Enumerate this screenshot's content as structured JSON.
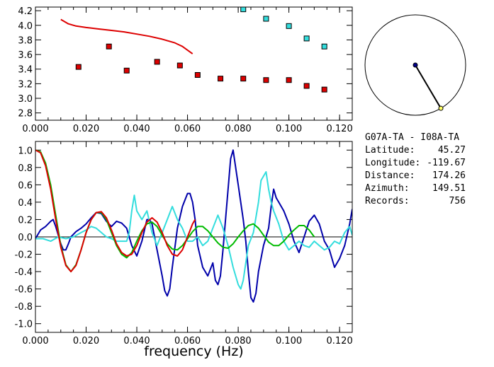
{
  "station_pair": "G07A-TA - I08A-TA",
  "info": [
    {
      "label": "Latitude:",
      "value": "45.27"
    },
    {
      "label": "Longitude:",
      "value": "-119.67"
    },
    {
      "label": "Distance:",
      "value": "174.26"
    },
    {
      "label": "Azimuth:",
      "value": "149.51"
    },
    {
      "label": "Records:",
      "value": "756"
    }
  ],
  "colors": {
    "red": "#dd0000",
    "cyan": "#33dddd",
    "blue": "#0000aa",
    "green": "#00bb00",
    "axis": "#000000"
  },
  "chart_data": [
    {
      "type": "scatter",
      "title": "",
      "xlabel": "",
      "ylabel": "",
      "xlim": [
        0.0,
        0.125
      ],
      "ylim": [
        2.7,
        4.25
      ],
      "xticks": [
        "0.000",
        "0.020",
        "0.040",
        "0.060",
        "0.080",
        "0.100",
        "0.120"
      ],
      "yticks": [
        "2.8",
        "3.0",
        "3.2",
        "3.4",
        "3.6",
        "3.8",
        "4.0",
        "4.2"
      ],
      "series": [
        {
          "kind": "line",
          "color": "red",
          "x": [
            0.01,
            0.013,
            0.016,
            0.02,
            0.025,
            0.03,
            0.035,
            0.04,
            0.045,
            0.05,
            0.055,
            0.058,
            0.06,
            0.062
          ],
          "y": [
            4.08,
            4.02,
            3.99,
            3.97,
            3.95,
            3.93,
            3.91,
            3.88,
            3.85,
            3.81,
            3.76,
            3.71,
            3.66,
            3.61
          ]
        },
        {
          "kind": "points",
          "color": "red",
          "x": [
            0.017,
            0.029,
            0.036,
            0.048,
            0.057,
            0.064,
            0.073,
            0.082,
            0.091,
            0.1,
            0.107,
            0.114
          ],
          "y": [
            3.43,
            3.71,
            3.38,
            3.5,
            3.45,
            3.32,
            3.27,
            3.27,
            3.25,
            3.25,
            3.17,
            3.12
          ]
        },
        {
          "kind": "points",
          "color": "cyan",
          "x": [
            0.082,
            0.091,
            0.1,
            0.107,
            0.114
          ],
          "y": [
            4.22,
            4.09,
            3.99,
            3.82,
            3.71
          ]
        }
      ]
    },
    {
      "type": "line",
      "title": "",
      "xlabel": "frequency (Hz)",
      "ylabel": "",
      "xlim": [
        0.0,
        0.125
      ],
      "ylim": [
        -1.1,
        1.1
      ],
      "xticks": [
        "0.000",
        "0.020",
        "0.040",
        "0.060",
        "0.080",
        "0.100",
        "0.120"
      ],
      "yticks": [
        "1.0",
        "0.8",
        "0.6",
        "0.4",
        "0.2",
        "0.0",
        "-0.2",
        "-0.4",
        "-0.6",
        "-0.8",
        "-1.0"
      ],
      "zero_line": true,
      "series": [
        {
          "color": "blue",
          "x": [
            0.0,
            0.002,
            0.004,
            0.006,
            0.007,
            0.008,
            0.009,
            0.01,
            0.011,
            0.012,
            0.013,
            0.014,
            0.016,
            0.018,
            0.02,
            0.022,
            0.024,
            0.026,
            0.028,
            0.03,
            0.032,
            0.034,
            0.036,
            0.038,
            0.04,
            0.042,
            0.044,
            0.045,
            0.046,
            0.048,
            0.05,
            0.051,
            0.052,
            0.053,
            0.054,
            0.056,
            0.058,
            0.06,
            0.061,
            0.062,
            0.063,
            0.064,
            0.066,
            0.068,
            0.07,
            0.071,
            0.072,
            0.073,
            0.074,
            0.075,
            0.076,
            0.077,
            0.078,
            0.08,
            0.082,
            0.083,
            0.084,
            0.085,
            0.086,
            0.087,
            0.088,
            0.09,
            0.092,
            0.093,
            0.094,
            0.095,
            0.096,
            0.098,
            0.1,
            0.102,
            0.104,
            0.106,
            0.108,
            0.11,
            0.112,
            0.114,
            0.116,
            0.118,
            0.12,
            0.122,
            0.124,
            0.125
          ],
          "y": [
            -0.02,
            0.08,
            0.12,
            0.18,
            0.2,
            0.12,
            0.02,
            -0.08,
            -0.15,
            -0.15,
            -0.08,
            0.0,
            0.06,
            0.1,
            0.15,
            0.22,
            0.28,
            0.27,
            0.18,
            0.12,
            0.18,
            0.16,
            0.1,
            -0.1,
            -0.22,
            -0.05,
            0.2,
            0.2,
            0.15,
            -0.15,
            -0.45,
            -0.62,
            -0.68,
            -0.6,
            -0.35,
            0.1,
            0.35,
            0.5,
            0.5,
            0.4,
            0.2,
            -0.1,
            -0.35,
            -0.45,
            -0.3,
            -0.5,
            -0.55,
            -0.45,
            -0.15,
            0.2,
            0.55,
            0.9,
            1.0,
            0.6,
            0.2,
            -0.05,
            -0.4,
            -0.7,
            -0.75,
            -0.65,
            -0.4,
            -0.1,
            0.1,
            0.35,
            0.55,
            0.45,
            0.4,
            0.3,
            0.15,
            -0.05,
            -0.18,
            0.0,
            0.18,
            0.25,
            0.15,
            -0.05,
            -0.15,
            -0.35,
            -0.25,
            -0.1,
            0.15,
            0.32
          ]
        },
        {
          "color": "cyan",
          "x": [
            0.0,
            0.003,
            0.006,
            0.009,
            0.012,
            0.015,
            0.018,
            0.02,
            0.022,
            0.024,
            0.026,
            0.028,
            0.03,
            0.032,
            0.034,
            0.036,
            0.037,
            0.038,
            0.039,
            0.04,
            0.042,
            0.044,
            0.046,
            0.048,
            0.05,
            0.052,
            0.054,
            0.056,
            0.058,
            0.06,
            0.062,
            0.064,
            0.066,
            0.068,
            0.07,
            0.072,
            0.074,
            0.076,
            0.078,
            0.08,
            0.081,
            0.082,
            0.083,
            0.084,
            0.086,
            0.088,
            0.089,
            0.09,
            0.091,
            0.092,
            0.093,
            0.094,
            0.096,
            0.098,
            0.1,
            0.102,
            0.104,
            0.106,
            0.108,
            0.11,
            0.112,
            0.114,
            0.116,
            0.118,
            0.12,
            0.122,
            0.124,
            0.125
          ],
          "y": [
            -0.02,
            -0.02,
            -0.05,
            0.0,
            -0.02,
            0.0,
            0.05,
            0.08,
            0.12,
            0.1,
            0.05,
            0.0,
            -0.02,
            -0.05,
            -0.05,
            -0.05,
            0.05,
            0.3,
            0.48,
            0.3,
            0.2,
            0.3,
            0.05,
            -0.1,
            0.05,
            0.2,
            0.35,
            0.2,
            0.1,
            -0.05,
            -0.05,
            0.0,
            -0.1,
            -0.05,
            0.1,
            0.25,
            0.1,
            -0.1,
            -0.35,
            -0.55,
            -0.6,
            -0.5,
            -0.3,
            -0.1,
            0.05,
            0.4,
            0.65,
            0.7,
            0.75,
            0.55,
            0.4,
            0.3,
            0.15,
            -0.05,
            -0.15,
            -0.1,
            -0.05,
            -0.1,
            -0.12,
            -0.05,
            -0.1,
            -0.15,
            -0.12,
            -0.05,
            -0.08,
            0.05,
            0.12,
            0.02
          ]
        },
        {
          "color": "green",
          "x": [
            0.0,
            0.002,
            0.004,
            0.006,
            0.008,
            0.01,
            0.012,
            0.014,
            0.016,
            0.018,
            0.02,
            0.022,
            0.024,
            0.026,
            0.028,
            0.03,
            0.032,
            0.034,
            0.036,
            0.038,
            0.04,
            0.042,
            0.044,
            0.046,
            0.048,
            0.05,
            0.052,
            0.054,
            0.056,
            0.058,
            0.06,
            0.062,
            0.064,
            0.066,
            0.068,
            0.07,
            0.072,
            0.074,
            0.076,
            0.078,
            0.08,
            0.082,
            0.084,
            0.086,
            0.088,
            0.09,
            0.092,
            0.094,
            0.096,
            0.098,
            0.1,
            0.102,
            0.104,
            0.106,
            0.108,
            0.11
          ],
          "y": [
            1.0,
            0.98,
            0.85,
            0.6,
            0.25,
            -0.1,
            -0.32,
            -0.4,
            -0.32,
            -0.15,
            0.05,
            0.2,
            0.28,
            0.28,
            0.2,
            0.05,
            -0.1,
            -0.2,
            -0.24,
            -0.18,
            -0.05,
            0.07,
            0.15,
            0.17,
            0.12,
            0.02,
            -0.08,
            -0.14,
            -0.15,
            -0.1,
            -0.02,
            0.06,
            0.12,
            0.12,
            0.07,
            0.0,
            -0.07,
            -0.12,
            -0.13,
            -0.08,
            0.0,
            0.07,
            0.13,
            0.15,
            0.1,
            0.02,
            -0.06,
            -0.1,
            -0.1,
            -0.05,
            0.02,
            0.08,
            0.13,
            0.13,
            0.08,
            0.0
          ]
        },
        {
          "color": "red",
          "x": [
            0.0,
            0.002,
            0.004,
            0.006,
            0.008,
            0.01,
            0.012,
            0.014,
            0.016,
            0.018,
            0.02,
            0.022,
            0.024,
            0.026,
            0.028,
            0.03,
            0.032,
            0.034,
            0.036,
            0.038,
            0.04,
            0.042,
            0.044,
            0.046,
            0.048,
            0.05,
            0.052,
            0.054,
            0.056,
            0.058,
            0.06,
            0.062,
            0.063
          ],
          "y": [
            1.0,
            0.97,
            0.82,
            0.55,
            0.2,
            -0.12,
            -0.33,
            -0.4,
            -0.33,
            -0.15,
            0.05,
            0.2,
            0.28,
            0.29,
            0.22,
            0.08,
            -0.08,
            -0.18,
            -0.22,
            -0.2,
            -0.1,
            0.05,
            0.17,
            0.22,
            0.17,
            0.05,
            -0.1,
            -0.2,
            -0.22,
            -0.15,
            0.0,
            0.15,
            0.2
          ]
        }
      ]
    }
  ],
  "azimuth_dial": {
    "azimuth_deg": 149.51
  }
}
